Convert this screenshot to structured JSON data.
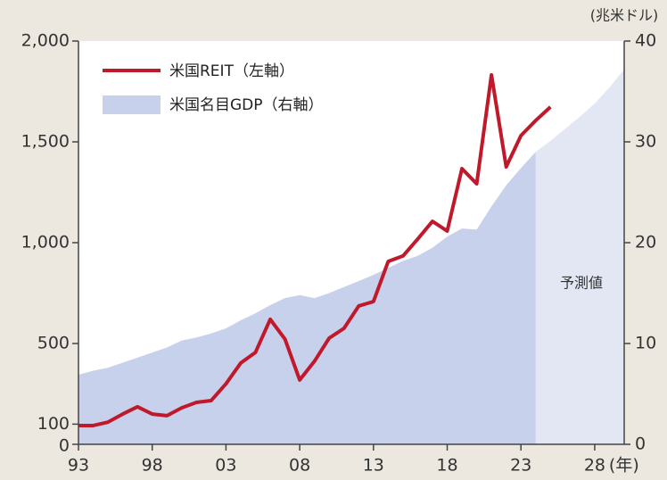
{
  "chart_data": {
    "type": "line",
    "x": [
      1993,
      1994,
      1995,
      1996,
      1997,
      1998,
      1999,
      2000,
      2001,
      2002,
      2003,
      2004,
      2005,
      2006,
      2007,
      2008,
      2009,
      2010,
      2011,
      2012,
      2013,
      2014,
      2015,
      2016,
      2017,
      2018,
      2019,
      2020,
      2021,
      2022,
      2023,
      2024,
      2025,
      2026,
      2027,
      2028,
      2029,
      2030
    ],
    "series": [
      {
        "name": "米国REIT（左軸）",
        "color": "#c0192b",
        "axis": "y",
        "values": [
          93,
          93,
          110,
          150,
          186,
          150,
          142,
          181,
          208,
          217,
          300,
          403,
          456,
          620,
          522,
          319,
          412,
          527,
          575,
          686,
          708,
          907,
          934,
          1018,
          1106,
          1058,
          1367,
          1292,
          1832,
          1376,
          1531,
          1606,
          1673,
          null,
          null,
          null,
          null,
          null
        ]
      },
      {
        "name": "米国名目GDP（右軸）",
        "color": "#c8d1ec",
        "forecast_color": "#e3e7f3",
        "forecast_start": 2024,
        "axis": "y2",
        "values": [
          6.9,
          7.3,
          7.6,
          8.1,
          8.6,
          9.1,
          9.6,
          10.3,
          10.6,
          11.0,
          11.5,
          12.3,
          13.0,
          13.8,
          14.5,
          14.8,
          14.5,
          15.0,
          15.6,
          16.2,
          16.8,
          17.5,
          18.2,
          18.7,
          19.5,
          20.6,
          21.4,
          21.3,
          23.6,
          25.7,
          27.4,
          29.0,
          30.1,
          31.3,
          32.5,
          33.8,
          35.4,
          37.2
        ]
      }
    ],
    "xlim": [
      1993,
      2030
    ],
    "xticks": [
      {
        "value": 1993,
        "label": "93"
      },
      {
        "value": 1998,
        "label": "98"
      },
      {
        "value": 2003,
        "label": "03"
      },
      {
        "value": 2008,
        "label": "08"
      },
      {
        "value": 2013,
        "label": "13"
      },
      {
        "value": 2018,
        "label": "18"
      },
      {
        "value": 2023,
        "label": "23"
      },
      {
        "value": 2028,
        "label": "28"
      }
    ],
    "x_unit": "(年)",
    "ylim": [
      0,
      2000
    ],
    "yticks": [
      0,
      100,
      500,
      {
        "value": 1000,
        "label": "1,000"
      },
      {
        "value": 1500,
        "label": "1,500"
      },
      {
        "value": 2000,
        "label": "2,000"
      }
    ],
    "y2lim": [
      0,
      40
    ],
    "y2ticks": [
      0,
      10,
      20,
      30,
      40
    ],
    "y2_unit": "(兆米ドル)",
    "annotation": "予測値"
  }
}
